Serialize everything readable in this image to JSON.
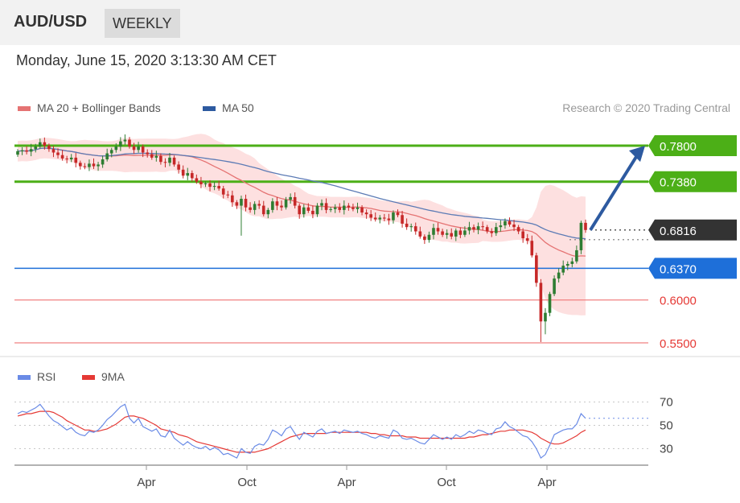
{
  "header": {
    "symbol": "AUD/USD",
    "period": "WEEKLY"
  },
  "datetime": "Monday, June 15, 2020 3:13:30 AM CET",
  "legend": {
    "ma20_label": "MA 20 + Bollinger Bands",
    "ma50_label": "MA 50",
    "rsi_label": "RSI",
    "ma9_label": "9MA",
    "copyright": "Research © 2020 Trading Central"
  },
  "colors": {
    "bull": "#2e7d32",
    "bear": "#c62828",
    "ma20": "#e57373",
    "ma50": "#5c7bb5",
    "band": "#fde0e0",
    "resistance": "#4caf17",
    "support_blue": "#1e6fd9",
    "support_red": "#f08080",
    "current": "#333333",
    "rsi": "#6a8be6",
    "ma9": "#e53935"
  },
  "chart_data": [
    {
      "type": "candlestick",
      "title": "AUD/USD",
      "ylim": [
        0.55,
        0.795
      ],
      "x_tick_labels": [
        "Apr",
        "Oct",
        "Apr",
        "Oct",
        "Apr"
      ],
      "levels": [
        {
          "value": 0.78,
          "label": "0.7800",
          "kind": "resistance"
        },
        {
          "value": 0.738,
          "label": "0.7380",
          "kind": "resistance"
        },
        {
          "value": 0.6816,
          "label": "0.6816",
          "kind": "current"
        },
        {
          "value": 0.637,
          "label": "0.6370",
          "kind": "support"
        },
        {
          "value": 0.6,
          "label": "0.6000",
          "kind": "pivot"
        },
        {
          "value": 0.55,
          "label": "0.5500",
          "kind": "pivot"
        }
      ],
      "close": [
        0.7735,
        0.7745,
        0.773,
        0.776,
        0.779,
        0.784,
        0.78,
        0.776,
        0.772,
        0.769,
        0.765,
        0.764,
        0.766,
        0.76,
        0.756,
        0.755,
        0.759,
        0.756,
        0.758,
        0.764,
        0.771,
        0.775,
        0.779,
        0.785,
        0.787,
        0.779,
        0.775,
        0.779,
        0.772,
        0.77,
        0.766,
        0.768,
        0.761,
        0.76,
        0.766,
        0.758,
        0.752,
        0.745,
        0.748,
        0.742,
        0.738,
        0.735,
        0.736,
        0.732,
        0.733,
        0.73,
        0.723,
        0.722,
        0.714,
        0.71,
        0.718,
        0.708,
        0.705,
        0.712,
        0.71,
        0.7,
        0.705,
        0.715,
        0.71,
        0.708,
        0.717,
        0.72,
        0.71,
        0.7,
        0.708,
        0.704,
        0.7,
        0.71,
        0.713,
        0.705,
        0.706,
        0.708,
        0.705,
        0.71,
        0.708,
        0.706,
        0.708,
        0.702,
        0.7,
        0.696,
        0.694,
        0.696,
        0.695,
        0.693,
        0.702,
        0.699,
        0.689,
        0.685,
        0.686,
        0.68,
        0.674,
        0.67,
        0.676,
        0.684,
        0.68,
        0.676,
        0.678,
        0.674,
        0.681,
        0.676,
        0.681,
        0.685,
        0.682,
        0.686,
        0.685,
        0.68,
        0.678,
        0.685,
        0.687,
        0.692,
        0.688,
        0.685,
        0.68,
        0.672,
        0.669,
        0.652,
        0.62,
        0.575,
        0.585,
        0.607,
        0.625,
        0.632,
        0.64,
        0.642,
        0.645,
        0.658,
        0.69,
        0.6816
      ],
      "rsi": {
        "ylim": [
          20,
          80
        ],
        "levels": [
          70,
          50,
          30
        ],
        "tick_labels": [
          "70",
          "50",
          "30"
        ],
        "rsi": [
          60,
          62,
          61,
          63,
          65,
          68,
          63,
          58,
          54,
          52,
          49,
          46,
          48,
          44,
          42,
          41,
          45,
          44,
          46,
          50,
          55,
          58,
          62,
          66,
          68,
          56,
          52,
          56,
          49,
          47,
          45,
          47,
          41,
          40,
          46,
          39,
          36,
          33,
          36,
          33,
          31,
          30,
          32,
          29,
          31,
          29,
          25,
          26,
          24,
          22,
          30,
          27,
          26,
          32,
          34,
          33,
          38,
          46,
          44,
          41,
          47,
          49,
          43,
          38,
          44,
          42,
          40,
          45,
          47,
          43,
          44,
          45,
          43,
          46,
          45,
          44,
          45,
          43,
          42,
          40,
          39,
          41,
          40,
          39,
          46,
          44,
          39,
          38,
          39,
          37,
          35,
          34,
          38,
          42,
          40,
          38,
          40,
          38,
          42,
          40,
          42,
          45,
          43,
          46,
          45,
          43,
          42,
          47,
          48,
          53,
          49,
          47,
          44,
          41,
          40,
          36,
          30,
          22,
          25,
          33,
          42,
          44,
          46,
          47,
          47,
          51,
          60,
          56
        ],
        "ma9": [
          58,
          59,
          60,
          60,
          61,
          62,
          62,
          62,
          61,
          59,
          57,
          54,
          52,
          50,
          48,
          46,
          46,
          45,
          45,
          46,
          47,
          49,
          51,
          54,
          57,
          58,
          58,
          57,
          56,
          54,
          52,
          50,
          47,
          46,
          45,
          44,
          42,
          41,
          40,
          38,
          36,
          35,
          34,
          33,
          32,
          31,
          30,
          29,
          28,
          27,
          27,
          27,
          27,
          27,
          28,
          29,
          30,
          32,
          34,
          36,
          38,
          40,
          41,
          42,
          43,
          43,
          43,
          43,
          43,
          43,
          44,
          44,
          44,
          44,
          44,
          44,
          44,
          44,
          44,
          43,
          43,
          42,
          42,
          41,
          41,
          41,
          41,
          40,
          40,
          40,
          39,
          39,
          39,
          39,
          39,
          39,
          39,
          39,
          39,
          39,
          39,
          40,
          40,
          41,
          42,
          42,
          43,
          44,
          45,
          45,
          46,
          46,
          46,
          46,
          45,
          44,
          42,
          39,
          37,
          35,
          34,
          34,
          35,
          37,
          39,
          41,
          44,
          46
        ]
      }
    }
  ]
}
